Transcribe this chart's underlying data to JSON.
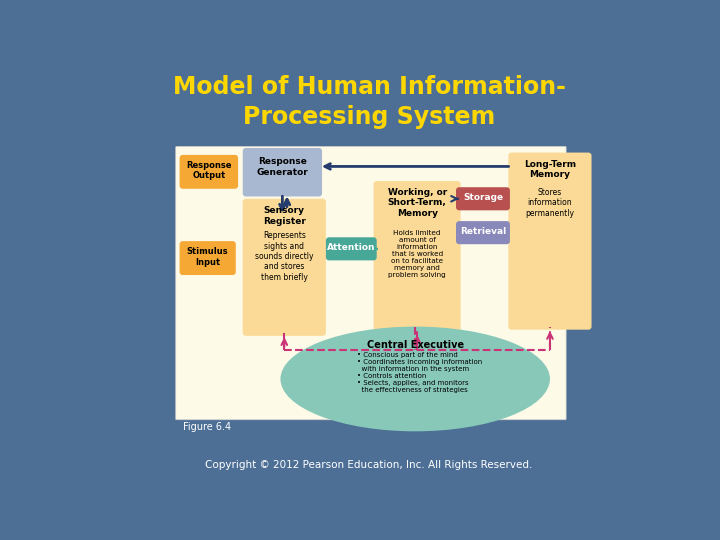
{
  "title": "Model of Human Information-\nProcessing System",
  "title_color": "#FFD700",
  "bg_color": "#4d6f96",
  "cream_color": "#FEFAE8",
  "orange_color": "#F5A833",
  "light_orange_color": "#FADA96",
  "blue_box_color": "#A8B8D0",
  "teal_color": "#48A898",
  "storage_color": "#B85050",
  "retrieval_color": "#8888BB",
  "ce_color": "#88C8B8",
  "dark_blue": "#243C6E",
  "pink_dash": "#CC3377",
  "figure_label": "Figure 6.4",
  "copyright": "Copyright © 2012 Pearson Education, Inc. All Rights Reserved."
}
